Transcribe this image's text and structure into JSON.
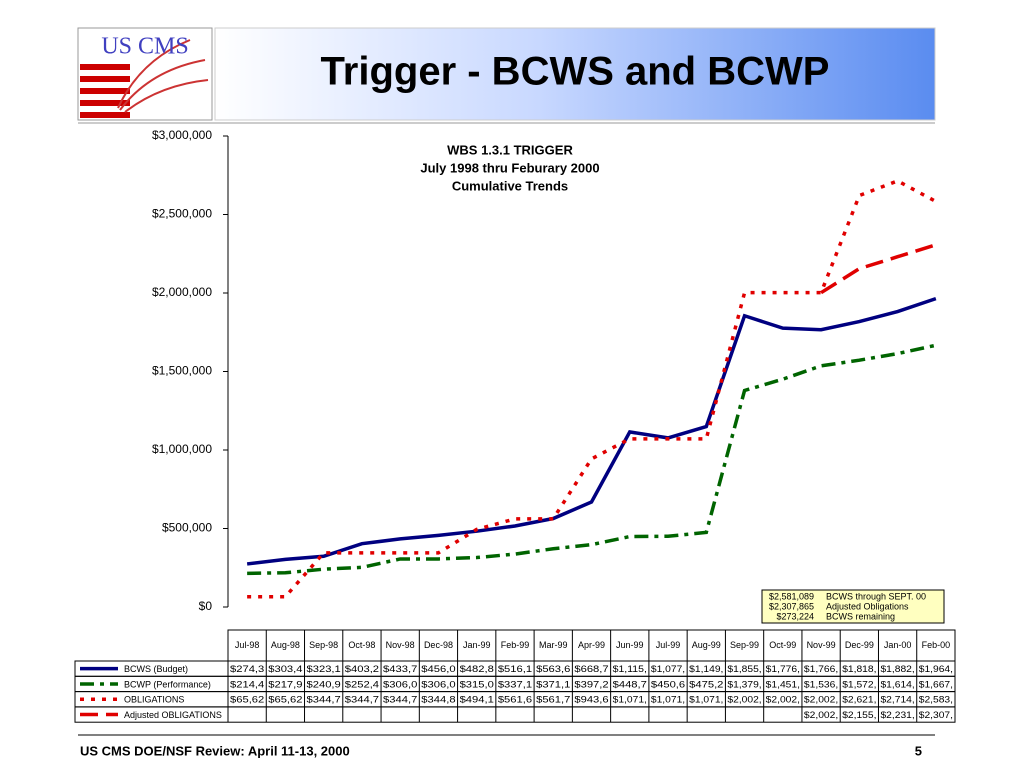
{
  "slide_title": "Trigger - BCWS and BCWP",
  "logo": "US CMS",
  "footer": "US CMS DOE/NSF Review:  April 11-13, 2000",
  "page_number": "5",
  "chart_data": {
    "type": "line",
    "title": "WBS 1.3.1 TRIGGER",
    "subtitle": [
      "July 1998 thru Feburary 2000",
      "Cumulative Trends"
    ],
    "categories": [
      "Jul-98",
      "Aug-98",
      "Sep-98",
      "Oct-98",
      "Nov-98",
      "Dec-98",
      "Jan-99",
      "Feb-99",
      "Mar-99",
      "Apr-99",
      "Jun-99",
      "Jul-99",
      "Aug-99",
      "Sep-99",
      "Oct-99",
      "Nov-99",
      "Dec-99",
      "Jan-00",
      "Feb-00"
    ],
    "ylim": [
      0,
      3000000
    ],
    "yticks": [
      {
        "value": 0,
        "label": "$0"
      },
      {
        "value": 500000,
        "label": "$500,000"
      },
      {
        "value": 1000000,
        "label": "$1,000,000"
      },
      {
        "value": 1500000,
        "label": "$1,500,000"
      },
      {
        "value": 2000000,
        "label": "$2,000,000"
      },
      {
        "value": 2500000,
        "label": "$2,500,000"
      },
      {
        "value": 3000000,
        "label": "$3,000,000"
      }
    ],
    "grid": false,
    "series": [
      {
        "name": "BCWS (Budget)",
        "color": "#000080",
        "dash": "solid",
        "values": [
          274300,
          303400,
          323100,
          403200,
          433700,
          456000,
          482800,
          516100,
          563600,
          668700,
          1115000,
          1077000,
          1149000,
          1855000,
          1776000,
          1766000,
          1818000,
          1882000,
          1964000
        ],
        "value_labels": [
          "$274,3",
          "$303,4",
          "$323,1",
          "$403,2",
          "$433,7",
          "$456,0",
          "$482,8",
          "$516,1",
          "$563,6",
          "$668,7",
          "$1,115,",
          "$1,077,",
          "$1,149,",
          "$1,855,",
          "$1,776,",
          "$1,766,",
          "$1,818,",
          "$1,882,",
          "$1,964,"
        ]
      },
      {
        "name": "BCWP (Performance)",
        "color": "#006400",
        "dash": "dashdot",
        "values": [
          214400,
          217900,
          240900,
          252400,
          306000,
          306000,
          315000,
          337100,
          371100,
          397200,
          448700,
          450600,
          475200,
          1379000,
          1451000,
          1536000,
          1572000,
          1614000,
          1667000
        ],
        "value_labels": [
          "$214,4",
          "$217,9",
          "$240,9",
          "$252,4",
          "$306,0",
          "$306,0",
          "$315,0",
          "$337,1",
          "$371,1",
          "$397,2",
          "$448,7",
          "$450,6",
          "$475,2",
          "$1,379,",
          "$1,451,",
          "$1,536,",
          "$1,572,",
          "$1,614,",
          "$1,667,"
        ]
      },
      {
        "name": "OBLIGATIONS",
        "color": "#e00000",
        "dash": "dotted",
        "values": [
          65620,
          65620,
          344700,
          344700,
          344700,
          344800,
          494100,
          561600,
          561700,
          943600,
          1071000,
          1071000,
          1071000,
          2002000,
          2002000,
          2002000,
          2621000,
          2714000,
          2583000
        ],
        "value_labels": [
          "$65,62",
          "$65,62",
          "$344,7",
          "$344,7",
          "$344,7",
          "$344,8",
          "$494,1",
          "$561,6",
          "$561,7",
          "$943,6",
          "$1,071,",
          "$1,071,",
          "$1,071,",
          "$2,002,",
          "$2,002,",
          "$2,002,",
          "$2,621,",
          "$2,714,",
          "$2,583,"
        ]
      },
      {
        "name": "Adjusted OBLIGATIONS",
        "color": "#e00000",
        "dash": "dashed",
        "values": [
          null,
          null,
          null,
          null,
          null,
          null,
          null,
          null,
          null,
          null,
          null,
          null,
          null,
          null,
          null,
          2002000,
          2155000,
          2231000,
          2307000
        ],
        "value_labels": [
          null,
          null,
          null,
          null,
          null,
          null,
          null,
          null,
          null,
          null,
          null,
          null,
          null,
          null,
          null,
          "$2,002,",
          "$2,155,",
          "$2,231,",
          "$2,307,"
        ]
      }
    ],
    "annotation": [
      [
        "$2,581,089",
        "BCWS through SEPT. 00"
      ],
      [
        "$2,307,865",
        "Adjusted Obligations"
      ],
      [
        "$273,224",
        "BCWS remaining"
      ]
    ]
  }
}
